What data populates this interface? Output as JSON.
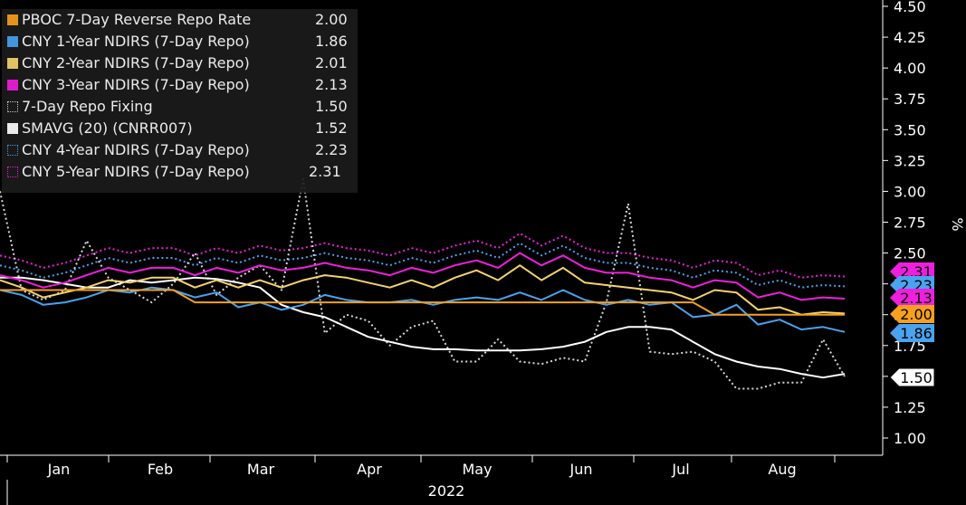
{
  "chart_data": {
    "type": "line",
    "x_label": "2022",
    "y_label": "%",
    "ylim": [
      0.9,
      4.55
    ],
    "y_ticks": [
      "4.50",
      "4.25",
      "4.00",
      "3.75",
      "3.50",
      "3.25",
      "3.00",
      "2.75",
      "2.50",
      "2.25",
      "2.00",
      "1.75",
      "1.50",
      "1.25",
      "1.00"
    ],
    "months": [
      "Jan",
      "Feb",
      "Mar",
      "Apr",
      "May",
      "Jun",
      "Jul",
      "Aug"
    ],
    "series": [
      {
        "name": "PBOC 7-Day Reverse Repo Rate",
        "last": "2.00",
        "color": "#f7a01f",
        "style": "solid",
        "values": [
          2.2,
          2.2,
          2.2,
          2.2,
          2.2,
          2.2,
          2.2,
          2.2,
          2.2,
          2.1,
          2.1,
          2.1,
          2.1,
          2.1,
          2.1,
          2.1,
          2.1,
          2.1,
          2.1,
          2.1,
          2.1,
          2.1,
          2.1,
          2.1,
          2.1,
          2.1,
          2.1,
          2.1,
          2.1,
          2.1,
          2.1,
          2.1,
          2.1,
          2.0,
          2.0,
          2.0,
          2.0,
          2.0,
          2.0,
          2.0
        ]
      },
      {
        "name": "CNY 1-Year NDIRS (7-Day Repo)",
        "last": "1.86",
        "color": "#4aa3ef",
        "style": "solid",
        "values": [
          2.2,
          2.16,
          2.08,
          2.1,
          2.14,
          2.2,
          2.18,
          2.22,
          2.2,
          2.14,
          2.18,
          2.06,
          2.1,
          2.04,
          2.08,
          2.16,
          2.12,
          2.1,
          2.1,
          2.12,
          2.08,
          2.12,
          2.14,
          2.12,
          2.18,
          2.12,
          2.2,
          2.12,
          2.08,
          2.12,
          2.08,
          2.1,
          1.98,
          2.0,
          2.08,
          1.92,
          1.96,
          1.88,
          1.9,
          1.86
        ]
      },
      {
        "name": "CNY 2-Year NDIRS (7-Day Repo)",
        "last": "2.01",
        "color": "#f5d36e",
        "style": "solid",
        "values": [
          2.28,
          2.22,
          2.14,
          2.18,
          2.22,
          2.28,
          2.26,
          2.3,
          2.3,
          2.22,
          2.28,
          2.22,
          2.28,
          2.22,
          2.28,
          2.32,
          2.3,
          2.26,
          2.22,
          2.28,
          2.22,
          2.3,
          2.36,
          2.28,
          2.4,
          2.28,
          2.38,
          2.26,
          2.24,
          2.22,
          2.2,
          2.18,
          2.12,
          2.2,
          2.18,
          2.04,
          2.06,
          2.0,
          2.02,
          2.01
        ]
      },
      {
        "name": "CNY 3-Year NDIRS (7-Day Repo)",
        "last": "2.13",
        "color": "#ef1fdd",
        "style": "solid",
        "values": [
          2.32,
          2.28,
          2.22,
          2.26,
          2.32,
          2.38,
          2.34,
          2.38,
          2.38,
          2.32,
          2.38,
          2.34,
          2.4,
          2.36,
          2.38,
          2.42,
          2.38,
          2.36,
          2.32,
          2.38,
          2.34,
          2.4,
          2.44,
          2.38,
          2.5,
          2.4,
          2.48,
          2.38,
          2.34,
          2.34,
          2.3,
          2.28,
          2.22,
          2.28,
          2.26,
          2.14,
          2.18,
          2.12,
          2.14,
          2.13
        ]
      },
      {
        "name": "7-Day Repo Fixing",
        "last": "1.50",
        "color": "#d8d8d8",
        "style": "dotted",
        "values": [
          3.0,
          2.2,
          2.12,
          2.2,
          2.6,
          2.3,
          2.2,
          2.1,
          2.25,
          2.5,
          2.16,
          2.3,
          2.4,
          2.2,
          3.1,
          1.85,
          2.0,
          1.95,
          1.75,
          1.9,
          1.95,
          1.62,
          1.62,
          1.8,
          1.62,
          1.6,
          1.65,
          1.62,
          2.1,
          2.9,
          1.7,
          1.68,
          1.7,
          1.62,
          1.4,
          1.4,
          1.45,
          1.45,
          1.8,
          1.5
        ]
      },
      {
        "name": "SMAVG (20) (CNRR007)",
        "last": "1.52",
        "color": "#ffffff",
        "style": "solid",
        "values": [
          2.3,
          2.3,
          2.28,
          2.25,
          2.22,
          2.22,
          2.28,
          2.26,
          2.28,
          2.3,
          2.29,
          2.26,
          2.22,
          2.08,
          2.02,
          1.98,
          1.9,
          1.82,
          1.78,
          1.74,
          1.72,
          1.72,
          1.71,
          1.71,
          1.71,
          1.72,
          1.74,
          1.78,
          1.86,
          1.9,
          1.9,
          1.88,
          1.78,
          1.68,
          1.62,
          1.58,
          1.56,
          1.52,
          1.49,
          1.52
        ]
      },
      {
        "name": "CNY 4-Year NDIRS (7-Day Repo)",
        "last": "2.23",
        "color": "#4aa3ef",
        "style": "dotted",
        "values": [
          2.4,
          2.36,
          2.3,
          2.34,
          2.4,
          2.46,
          2.42,
          2.46,
          2.46,
          2.4,
          2.46,
          2.42,
          2.48,
          2.44,
          2.46,
          2.5,
          2.46,
          2.44,
          2.4,
          2.46,
          2.42,
          2.48,
          2.52,
          2.46,
          2.58,
          2.48,
          2.56,
          2.46,
          2.42,
          2.42,
          2.38,
          2.36,
          2.3,
          2.36,
          2.34,
          2.24,
          2.28,
          2.22,
          2.24,
          2.23
        ]
      },
      {
        "name": "CNY 5-Year NDIRS (7-Day Repo)",
        "last": "2.31",
        "color": "#ef1fdd",
        "style": "dotted",
        "values": [
          2.48,
          2.44,
          2.38,
          2.42,
          2.48,
          2.54,
          2.5,
          2.54,
          2.54,
          2.48,
          2.54,
          2.5,
          2.56,
          2.52,
          2.54,
          2.58,
          2.54,
          2.52,
          2.48,
          2.54,
          2.5,
          2.56,
          2.6,
          2.54,
          2.66,
          2.56,
          2.64,
          2.54,
          2.5,
          2.5,
          2.46,
          2.44,
          2.38,
          2.44,
          2.42,
          2.32,
          2.36,
          2.3,
          2.32,
          2.31
        ]
      }
    ],
    "right_labels": [
      {
        "text": "2.31",
        "color": "#ef1fdd",
        "value": 2.31
      },
      {
        "text": "2.23",
        "color": "#4aa3ef",
        "value": 2.23
      },
      {
        "text": "2.13",
        "color": "#ef1fdd",
        "value": 2.13
      },
      {
        "text": "2.00",
        "color": "#f7a01f",
        "value": 2.0
      },
      {
        "text": "1.86",
        "color": "#4aa3ef",
        "value": 1.86
      },
      {
        "text": "1.50",
        "color": "#ffffff",
        "value": 1.5
      }
    ]
  }
}
